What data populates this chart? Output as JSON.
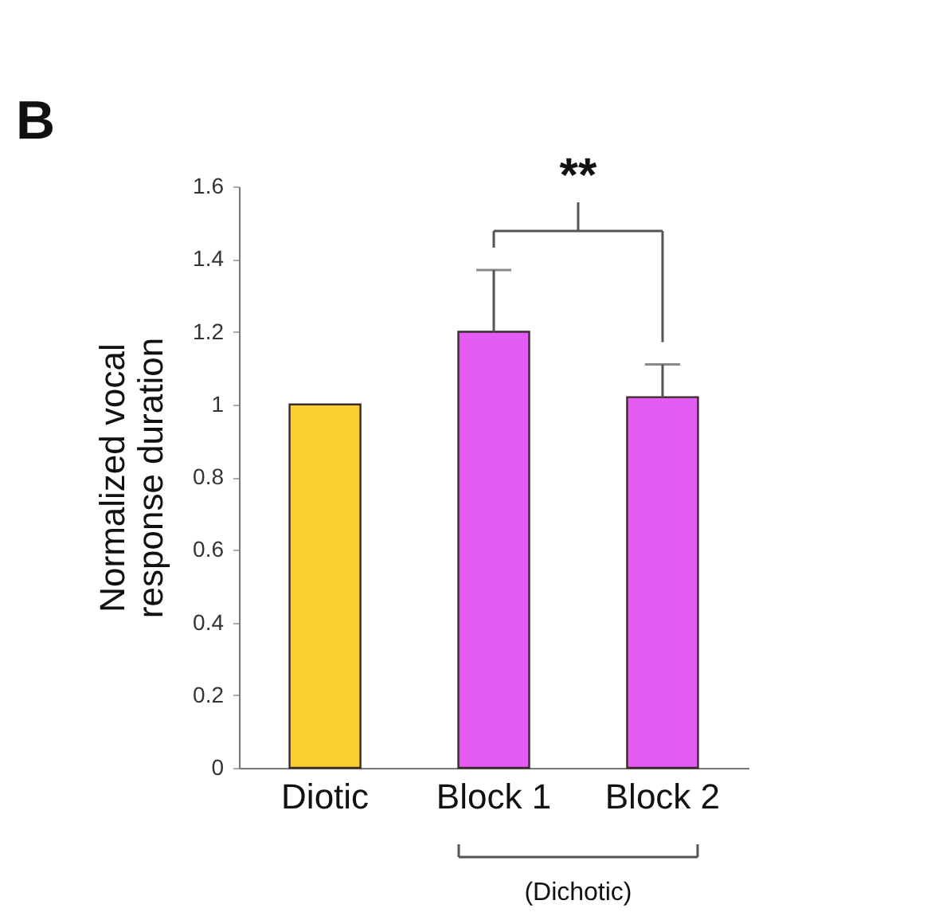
{
  "chart_data": {
    "type": "bar",
    "categories": [
      "Diotic",
      "Block 1",
      "Block 2"
    ],
    "values": [
      1,
      1.2,
      1.02
    ],
    "colors": [
      "#f9d030",
      "#e55cf5",
      "#e55cf5"
    ],
    "errors": [
      null,
      [
        1.2,
        1.37
      ],
      [
        1.02,
        1.11
      ]
    ],
    "ylabel": "Normalized vocal\nresponse duration",
    "ylim": [
      0,
      1.6
    ],
    "yticks": [
      0,
      0.2,
      0.4,
      0.6,
      0.8,
      1,
      1.2,
      1.4,
      1.6
    ],
    "grid": false,
    "annotations": [
      "B",
      "**",
      "(Dichotic)"
    ]
  }
}
